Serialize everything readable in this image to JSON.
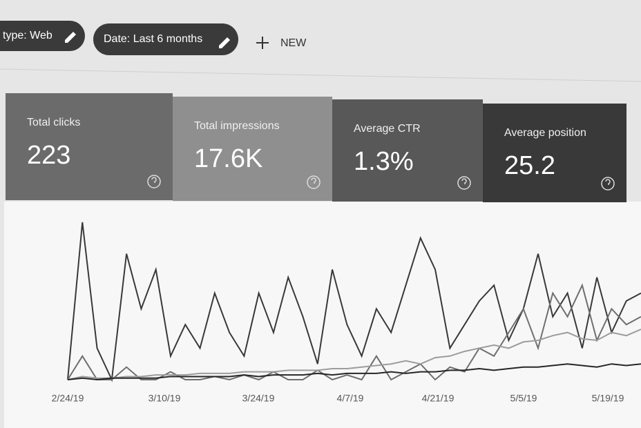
{
  "filters": [
    "type: Web",
    "Date: Last 6 months"
  ],
  "new_button": "NEW",
  "metrics": [
    {
      "label": "Total clicks",
      "value": "223"
    },
    {
      "label": "Total impressions",
      "value": "17.6K"
    },
    {
      "label": "Average CTR",
      "value": "1.3%"
    },
    {
      "label": "Average position",
      "value": "25.2"
    }
  ],
  "chart_data": {
    "type": "line",
    "x_labels": [
      "2/24/19",
      "3/10/19",
      "3/24/19",
      "4/7/19",
      "4/21/19",
      "5/5/19",
      "5/19/19"
    ],
    "ylim": [
      0,
      100
    ],
    "series": [
      {
        "color": "#383838",
        "values": [
          0,
          100,
          20,
          0,
          80,
          45,
          70,
          15,
          35,
          20,
          55,
          30,
          15,
          55,
          30,
          65,
          40,
          10,
          70,
          35,
          15,
          45,
          30,
          60,
          90,
          70,
          20,
          35,
          50,
          60,
          25,
          45,
          80,
          40,
          55,
          20,
          65,
          30,
          50,
          55
        ]
      },
      {
        "color": "#6e6e6e",
        "values": [
          0,
          15,
          0,
          0,
          8,
          0,
          0,
          5,
          0,
          0,
          2,
          0,
          3,
          0,
          5,
          0,
          0,
          6,
          0,
          3,
          0,
          15,
          0,
          5,
          10,
          0,
          8,
          5,
          20,
          15,
          30,
          45,
          20,
          55,
          40,
          60,
          25,
          45,
          35,
          40
        ]
      },
      {
        "color": "#9c9c9c",
        "values": [
          0,
          2,
          1,
          1,
          2,
          2,
          3,
          3,
          3,
          4,
          4,
          4,
          5,
          5,
          5,
          6,
          6,
          6,
          7,
          7,
          8,
          9,
          10,
          12,
          10,
          14,
          15,
          18,
          20,
          22,
          20,
          24,
          25,
          28,
          30,
          26,
          25,
          30,
          28,
          32
        ]
      },
      {
        "color": "#262626",
        "values": [
          0,
          1,
          0,
          1,
          1,
          1,
          1,
          2,
          2,
          2,
          2,
          2,
          3,
          2,
          3,
          3,
          3,
          4,
          3,
          4,
          4,
          4,
          5,
          4,
          5,
          5,
          6,
          6,
          7,
          6,
          7,
          8,
          8,
          9,
          10,
          9,
          8,
          10,
          9,
          10
        ]
      }
    ]
  }
}
